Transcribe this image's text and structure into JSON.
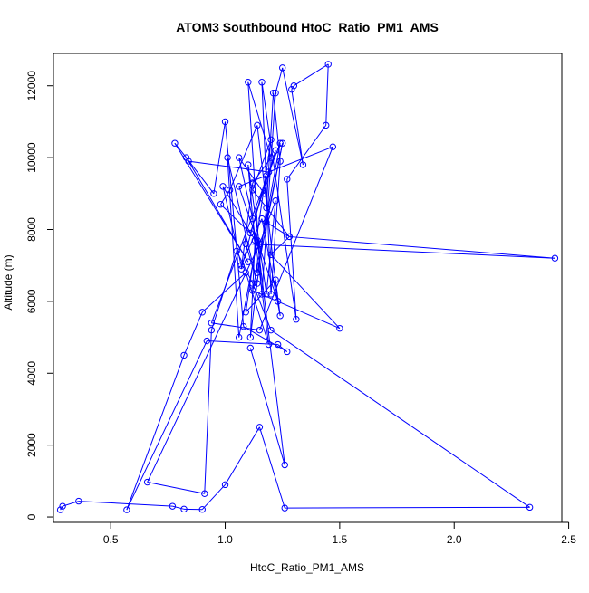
{
  "chart_data": {
    "type": "line",
    "title": "ATOM3 Southbound HtoC_Ratio_PM1_AMS",
    "xlabel": "HtoC_Ratio_PM1_AMS",
    "ylabel": "Altitude (m)",
    "xlim": [
      0.25,
      2.47
    ],
    "ylim": [
      -150,
      12900
    ],
    "xticks": [
      0.5,
      1.0,
      1.5,
      2.0,
      2.5
    ],
    "xtick_labels": [
      "0.5",
      "1.0",
      "1.5",
      "2.0",
      "2.5"
    ],
    "yticks": [
      0,
      2000,
      4000,
      6000,
      8000,
      10000,
      12000
    ],
    "ytick_labels": [
      "0",
      "2000",
      "4000",
      "6000",
      "8000",
      "10000",
      "12000"
    ],
    "marker": "open-circle",
    "grid": false,
    "legend": "none",
    "series": [
      {
        "color": "#0000ff",
        "x": [
          0.28,
          0.29,
          0.36,
          0.77,
          0.82,
          0.9,
          1.0,
          1.15,
          1.26,
          2.33,
          1.2,
          1.12,
          1.05,
          0.94,
          0.91,
          0.66,
          1.15,
          1.22,
          1.18,
          1.1,
          1.14,
          1.25,
          1.18,
          1.28,
          1.12,
          1.2,
          1.09,
          1.22,
          1.24,
          1.16,
          1.07,
          0.99,
          1.13,
          1.11,
          1.18,
          1.21,
          1.24,
          1.2,
          1.16,
          1.31,
          1.27,
          1.44,
          1.45,
          1.3,
          1.29,
          1.34,
          1.25,
          1.22,
          1.16,
          1.1,
          1.2,
          1.12,
          1.07,
          1.18,
          1.06,
          1.23,
          1.14,
          1.02,
          0.98,
          1.11,
          1.22,
          1.17,
          1.06,
          1.12,
          1.19,
          1.09,
          0.9,
          0.82,
          0.57,
          0.92,
          1.23,
          1.27,
          1.08,
          1.0,
          0.95,
          0.83,
          0.78,
          1.1,
          0.84,
          1.19,
          1.47,
          1.15,
          0.94,
          1.24,
          1.12,
          1.5,
          1.2,
          1.28,
          2.44,
          1.09,
          1.14,
          1.01,
          1.06,
          1.14,
          1.26,
          1.11
        ],
        "y": [
          200,
          300,
          440,
          300,
          220,
          210,
          900,
          2500,
          250,
          270,
          5200,
          6500,
          7400,
          5200,
          650,
          970,
          7600,
          8800,
          6200,
          9800,
          6800,
          10400,
          8200,
          7800,
          9100,
          10500,
          5700,
          6600,
          5600,
          8300,
          7000,
          9200,
          7700,
          5000,
          8600,
          11800,
          9900,
          6200,
          12100,
          5500,
          9400,
          10900,
          12600,
          12000,
          11900,
          9800,
          12500,
          11800,
          6200,
          12100,
          10000,
          9300,
          6900,
          9500,
          9200,
          6000,
          10900,
          9100,
          8700,
          7900,
          10200,
          9000,
          10000,
          8300,
          4800,
          6800,
          5700,
          4500,
          200,
          4900,
          4800,
          4600,
          5300,
          11000,
          9000,
          10000,
          10400,
          7100,
          9900,
          9600,
          10300,
          5200,
          5400,
          10400,
          6300,
          5250,
          7300,
          7800,
          7200,
          7600,
          6500,
          10000,
          5000,
          7700,
          1450,
          4700
        ]
      }
    ]
  }
}
